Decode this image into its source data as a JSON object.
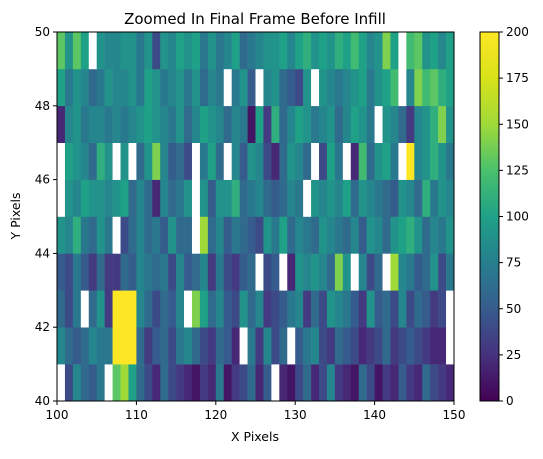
{
  "chart_data": {
    "type": "heatmap",
    "title": "Zoomed In Final Frame Before Infill",
    "xlabel": "X Pixels",
    "ylabel": "Y Pixels",
    "xlim": [
      100,
      150
    ],
    "ylim": [
      40,
      50
    ],
    "x_ticks": [
      100,
      110,
      120,
      130,
      140,
      150
    ],
    "y_ticks": [
      40,
      42,
      44,
      46,
      48,
      50
    ],
    "colorbar": {
      "colormap": "viridis",
      "range": [
        0,
        200
      ],
      "ticks": [
        0,
        25,
        50,
        75,
        100,
        125,
        150,
        175,
        200
      ]
    },
    "blank_cells_color": "#ffffff",
    "grid": false,
    "rows_note_y_start": [
      40,
      41,
      42,
      43,
      44,
      45,
      46,
      47,
      48,
      49
    ],
    "values": [
      [
        null,
        40,
        80,
        60,
        50,
        70,
        null,
        130,
        150,
        100,
        60,
        40,
        20,
        60,
        40,
        30,
        20,
        10,
        30,
        20,
        70,
        10,
        30,
        40,
        60,
        20,
        50,
        null,
        20,
        10,
        40,
        60,
        20,
        40,
        80,
        30,
        20,
        10,
        60,
        40,
        10,
        30,
        20,
        50,
        30,
        20,
        60,
        40,
        30,
        20
      ],
      [
        80,
        60,
        50,
        60,
        80,
        70,
        70,
        200,
        200,
        200,
        60,
        30,
        50,
        60,
        40,
        70,
        80,
        60,
        40,
        30,
        60,
        50,
        20,
        null,
        70,
        30,
        80,
        40,
        60,
        null,
        50,
        70,
        80,
        40,
        30,
        60,
        50,
        40,
        20,
        30,
        40,
        60,
        30,
        40,
        50,
        40,
        30,
        20,
        20,
        null
      ],
      [
        60,
        40,
        70,
        null,
        60,
        90,
        30,
        200,
        200,
        200,
        80,
        60,
        40,
        60,
        50,
        80,
        null,
        140,
        100,
        60,
        80,
        50,
        40,
        90,
        60,
        80,
        30,
        40,
        50,
        70,
        80,
        30,
        60,
        40,
        90,
        80,
        70,
        50,
        30,
        90,
        50,
        60,
        40,
        80,
        40,
        60,
        50,
        30,
        40,
        null
      ],
      [
        50,
        40,
        70,
        50,
        30,
        60,
        30,
        30,
        60,
        50,
        80,
        70,
        60,
        70,
        40,
        80,
        50,
        60,
        80,
        30,
        70,
        40,
        30,
        50,
        60,
        null,
        40,
        50,
        null,
        20,
        90,
        80,
        90,
        80,
        60,
        140,
        90,
        null,
        80,
        40,
        60,
        null,
        150,
        80,
        70,
        50,
        60,
        90,
        40,
        70
      ],
      [
        90,
        80,
        110,
        70,
        60,
        90,
        70,
        null,
        40,
        60,
        80,
        60,
        70,
        50,
        90,
        60,
        60,
        null,
        150,
        60,
        80,
        50,
        70,
        60,
        50,
        40,
        90,
        70,
        100,
        60,
        80,
        70,
        60,
        90,
        80,
        70,
        60,
        80,
        50,
        90,
        80,
        60,
        90,
        100,
        110,
        90,
        60,
        80,
        70,
        90
      ],
      [
        null,
        90,
        80,
        100,
        90,
        90,
        80,
        90,
        100,
        60,
        80,
        60,
        20,
        80,
        60,
        70,
        90,
        null,
        90,
        50,
        90,
        90,
        110,
        60,
        70,
        80,
        60,
        50,
        60,
        80,
        70,
        null,
        90,
        80,
        90,
        80,
        100,
        60,
        90,
        80,
        70,
        60,
        50,
        90,
        80,
        60,
        110,
        70,
        90,
        80
      ],
      [
        null,
        100,
        90,
        80,
        60,
        110,
        90,
        null,
        90,
        null,
        60,
        90,
        140,
        80,
        50,
        60,
        40,
        null,
        70,
        100,
        60,
        null,
        80,
        50,
        90,
        80,
        40,
        20,
        60,
        90,
        80,
        60,
        null,
        40,
        100,
        70,
        null,
        20,
        120,
        60,
        90,
        100,
        70,
        null,
        200,
        80,
        90,
        110,
        90,
        70
      ],
      [
        20,
        80,
        90,
        70,
        80,
        80,
        70,
        80,
        70,
        80,
        90,
        100,
        90,
        80,
        70,
        90,
        60,
        80,
        100,
        90,
        80,
        60,
        80,
        70,
        10,
        100,
        30,
        110,
        60,
        80,
        100,
        90,
        70,
        80,
        90,
        60,
        80,
        100,
        90,
        70,
        null,
        90,
        80,
        60,
        30,
        80,
        90,
        110,
        140,
        90
      ],
      [
        100,
        70,
        90,
        80,
        60,
        70,
        90,
        80,
        80,
        90,
        70,
        100,
        90,
        70,
        80,
        90,
        70,
        90,
        60,
        80,
        70,
        null,
        70,
        90,
        50,
        null,
        80,
        90,
        60,
        50,
        40,
        90,
        null,
        90,
        80,
        70,
        80,
        90,
        100,
        70,
        90,
        100,
        120,
        null,
        80,
        140,
        120,
        130,
        110,
        100
      ],
      [
        130,
        90,
        130,
        100,
        90,
        90,
        80,
        80,
        90,
        90,
        70,
        90,
        40,
        90,
        80,
        100,
        90,
        100,
        70,
        90,
        70,
        80,
        100,
        60,
        70,
        80,
        90,
        90,
        100,
        80,
        100,
        110,
        90,
        100,
        90,
        110,
        100,
        120,
        100,
        80,
        90,
        140,
        100,
        null,
        120,
        130,
        90,
        100,
        80,
        100
      ]
    ],
    "top_row_overrides": [
      30,
      10,
      80,
      90,
      null,
      70,
      100,
      40,
      90,
      110,
      90,
      130,
      80,
      20,
      90,
      80,
      100,
      110,
      90,
      80,
      140,
      90,
      120,
      90,
      130,
      100,
      90,
      100,
      90,
      80,
      110,
      90,
      100,
      120,
      110,
      100,
      90,
      110,
      100,
      120,
      90,
      110,
      100,
      130,
      80,
      120,
      150,
      110,
      80,
      90
    ]
  }
}
